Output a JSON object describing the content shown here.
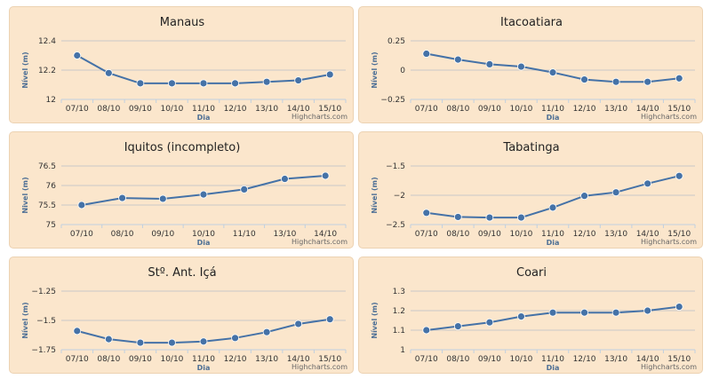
{
  "credit": "Highcharts.com",
  "chart_data": [
    {
      "type": "line",
      "title": "Manaus",
      "xlabel": "Dia",
      "ylabel": "Nível (m)",
      "categories": [
        "07/10",
        "08/10",
        "09/10",
        "10/10",
        "11/10",
        "12/10",
        "13/10",
        "14/10",
        "15/10"
      ],
      "values": [
        12.3,
        12.18,
        12.11,
        12.11,
        12.11,
        12.11,
        12.12,
        12.13,
        12.17
      ],
      "ylim": [
        12,
        12.4
      ],
      "yticks": [
        "12",
        "12.2",
        "12.4"
      ],
      "color": "#4572a7"
    },
    {
      "type": "line",
      "title": "Itacoatiara",
      "xlabel": "Dia",
      "ylabel": "Nível (m)",
      "categories": [
        "07/10",
        "08/10",
        "09/10",
        "10/10",
        "11/10",
        "12/10",
        "13/10",
        "14/10",
        "15/10"
      ],
      "values": [
        0.14,
        0.09,
        0.05,
        0.03,
        -0.02,
        -0.08,
        -0.1,
        -0.1,
        -0.07
      ],
      "ylim": [
        -0.25,
        0.25
      ],
      "yticks": [
        "−0.25",
        "0",
        "0.25"
      ],
      "color": "#4572a7"
    },
    {
      "type": "line",
      "title": "Iquitos (incompleto)",
      "xlabel": "Dia",
      "ylabel": "Nivel (m)",
      "categories": [
        "07/10",
        "08/10",
        "09/10",
        "10/10",
        "11/10",
        "13/10",
        "14/10"
      ],
      "values": [
        75.5,
        75.68,
        75.66,
        75.77,
        75.9,
        76.17,
        76.25
      ],
      "ylim": [
        75,
        76.5
      ],
      "yticks": [
        "75",
        "75.5",
        "76",
        "76.5"
      ],
      "color": "#4572a7"
    },
    {
      "type": "line",
      "title": "Tabatinga",
      "xlabel": "Dia",
      "ylabel": "Nível (m)",
      "categories": [
        "07/10",
        "08/10",
        "09/10",
        "10/10",
        "11/10",
        "12/10",
        "13/10",
        "14/10",
        "15/10"
      ],
      "values": [
        -2.3,
        -2.37,
        -2.38,
        -2.38,
        -2.21,
        -2.01,
        -1.95,
        -1.8,
        -1.67
      ],
      "ylim": [
        -2.5,
        -1.5
      ],
      "yticks": [
        "−2.5",
        "−2",
        "−1.5"
      ],
      "color": "#4572a7"
    },
    {
      "type": "line",
      "title": "Stº. Ant. Içá",
      "xlabel": "Dia",
      "ylabel": "Nível (m)",
      "categories": [
        "07/10",
        "08/10",
        "09/10",
        "10/10",
        "11/10",
        "12/10",
        "13/10",
        "14/10",
        "15/10"
      ],
      "values": [
        -1.59,
        -1.66,
        -1.69,
        -1.69,
        -1.68,
        -1.65,
        -1.6,
        -1.53,
        -1.49
      ],
      "ylim": [
        -1.75,
        -1.25
      ],
      "yticks": [
        "−1.75",
        "−1.5",
        "−1.25"
      ],
      "color": "#4572a7"
    },
    {
      "type": "line",
      "title": "Coari",
      "xlabel": "Dia",
      "ylabel": "Nível (m)",
      "categories": [
        "07/10",
        "08/10",
        "09/10",
        "10/10",
        "11/10",
        "12/10",
        "13/10",
        "14/10",
        "15/10"
      ],
      "values": [
        1.1,
        1.12,
        1.14,
        1.17,
        1.19,
        1.19,
        1.19,
        1.2,
        1.22
      ],
      "ylim": [
        1,
        1.3
      ],
      "yticks": [
        "1",
        "1.1",
        "1.2",
        "1.3"
      ],
      "color": "#4572a7"
    }
  ]
}
